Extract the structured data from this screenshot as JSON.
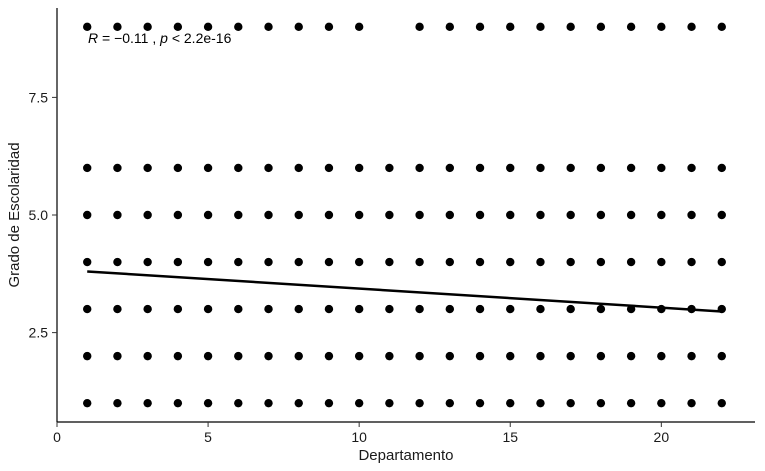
{
  "chart_data": {
    "type": "scatter",
    "title": "",
    "xlabel": "Departamento",
    "ylabel": "Grado de Escolaridad",
    "xlim": [
      0,
      23.1
    ],
    "ylim": [
      0.6,
      9.4
    ],
    "x_ticks": [
      0,
      5,
      10,
      15,
      20
    ],
    "x_tick_labels": [
      "0",
      "5",
      "10",
      "15",
      "20"
    ],
    "y_ticks": [
      2.5,
      5.0,
      7.5
    ],
    "y_tick_labels": [
      "2.5",
      "5.0",
      "7.5"
    ],
    "grid": false,
    "point_color": "#000000",
    "series": [
      {
        "y": 1,
        "x": [
          1,
          2,
          3,
          4,
          5,
          6,
          7,
          8,
          9,
          10,
          11,
          12,
          13,
          14,
          15,
          16,
          17,
          18,
          19,
          20,
          21,
          22
        ]
      },
      {
        "y": 2,
        "x": [
          1,
          2,
          3,
          4,
          5,
          6,
          7,
          8,
          9,
          10,
          11,
          12,
          13,
          14,
          15,
          16,
          17,
          18,
          19,
          20,
          21,
          22
        ]
      },
      {
        "y": 3,
        "x": [
          1,
          2,
          3,
          4,
          5,
          6,
          7,
          8,
          9,
          10,
          11,
          12,
          13,
          14,
          15,
          16,
          17,
          18,
          19,
          20,
          21,
          22
        ]
      },
      {
        "y": 4,
        "x": [
          1,
          2,
          3,
          4,
          5,
          6,
          7,
          8,
          9,
          10,
          11,
          12,
          13,
          14,
          15,
          16,
          17,
          18,
          19,
          20,
          21,
          22
        ]
      },
      {
        "y": 5,
        "x": [
          1,
          2,
          3,
          4,
          5,
          6,
          7,
          8,
          9,
          10,
          11,
          12,
          13,
          14,
          15,
          16,
          17,
          18,
          19,
          20,
          21,
          22
        ]
      },
      {
        "y": 6,
        "x": [
          1,
          2,
          3,
          4,
          5,
          6,
          7,
          8,
          9,
          10,
          11,
          12,
          13,
          14,
          15,
          16,
          17,
          18,
          19,
          20,
          21,
          22
        ]
      },
      {
        "y": 9,
        "x": [
          1,
          2,
          3,
          4,
          5,
          6,
          7,
          8,
          9,
          10,
          12,
          13,
          14,
          15,
          16,
          17,
          18,
          19,
          20,
          21,
          22
        ]
      }
    ],
    "regression_line": {
      "x": [
        1,
        22
      ],
      "y": [
        3.8,
        2.95
      ],
      "color": "#000000"
    },
    "annotation": {
      "r_symbol": "R",
      "r_value": " = −0.11 , ",
      "p_symbol": "p",
      "p_value": " < 2.2e-16"
    }
  }
}
